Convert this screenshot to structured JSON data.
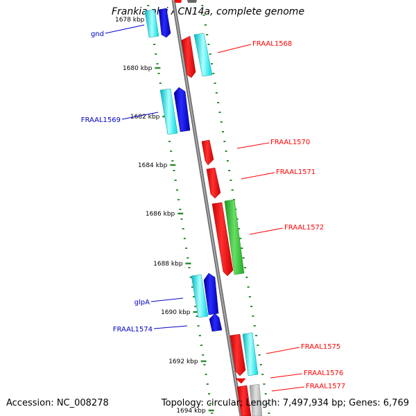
{
  "title": "Frankia alni ACN14a, complete genome",
  "footer": {
    "accession": "Accession: NC_008278",
    "topology": "Topology: circular; Length: 7,497,934 bp; Genes: 6,769"
  },
  "ticks": [
    "1678 kbp",
    "1680 kbp",
    "1682 kbp",
    "1684 kbp",
    "1686 kbp",
    "1688 kbp",
    "1690 kbp",
    "1692 kbp",
    "1694 kbp"
  ],
  "gene_labels": [
    {
      "text": "gnd",
      "strand": "minus"
    },
    {
      "text": "FRAAL1568",
      "strand": "plus"
    },
    {
      "text": "FRAAL1569",
      "strand": "minus"
    },
    {
      "text": "FRAAL1570",
      "strand": "plus"
    },
    {
      "text": "FRAAL1571",
      "strand": "plus"
    },
    {
      "text": "FRAAL1572",
      "strand": "plus"
    },
    {
      "text": "glpA",
      "strand": "minus"
    },
    {
      "text": "FRAAL1574",
      "strand": "minus"
    },
    {
      "text": "FRAAL1575",
      "strand": "plus"
    },
    {
      "text": "FRAAL1576",
      "strand": "plus"
    },
    {
      "text": "FRAAL1577",
      "strand": "plus"
    }
  ],
  "colors": {
    "plus_strand": "#ff0000",
    "minus_strand": "#0000cc",
    "cyan_feature": "#00e5ee",
    "green_feature": "#33cc33",
    "grey_feature": "#bbbbbb",
    "backbone": "#888888",
    "ticks": "#2e8b2e"
  }
}
